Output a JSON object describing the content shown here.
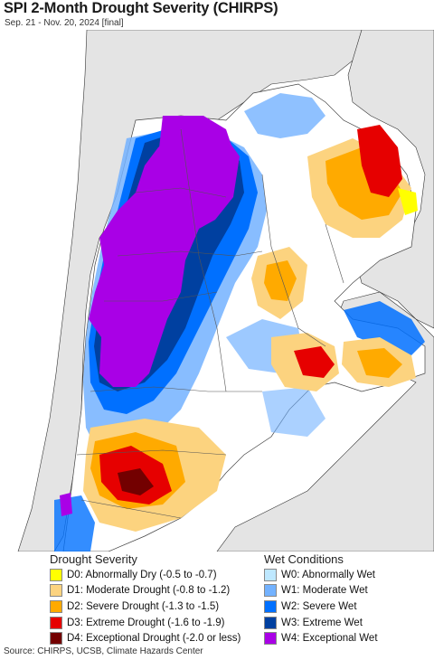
{
  "header": {
    "title": "SPI 2-Month Drought Severity (CHIRPS)",
    "subtitle": "Sep. 21 - Nov. 20, 2024 [final]"
  },
  "legend": {
    "drought": {
      "heading": "Drought Severity",
      "items": [
        {
          "label": "D0: Abnormally Dry (-0.5 to -0.7)",
          "color": "#ffff00"
        },
        {
          "label": "D1: Moderate Drought (-0.8 to -1.2)",
          "color": "#fcd37f"
        },
        {
          "label": "D2: Severe Drought (-1.3 to -1.5)",
          "color": "#ffaa00"
        },
        {
          "label": "D3: Extreme Drought (-1.6 to -1.9)",
          "color": "#e60000"
        },
        {
          "label": "D4: Exceptional Drought (-2.0 or less)",
          "color": "#730000"
        }
      ]
    },
    "wet": {
      "heading": "Wet Conditions",
      "items": [
        {
          "label": "W0: Abnormally Wet",
          "color": "#bee8ff"
        },
        {
          "label": "W1: Moderate Wet",
          "color": "#73b2ff"
        },
        {
          "label": "W2: Severe Wet",
          "color": "#0070ff"
        },
        {
          "label": "W3: Extreme Wet",
          "color": "#0040a0"
        },
        {
          "label": "W4: Exceptional Wet",
          "color": "#a900e6"
        }
      ]
    }
  },
  "footer": {
    "source": "Source: CHIRPS, UCSB, Climate Hazards Center"
  }
}
